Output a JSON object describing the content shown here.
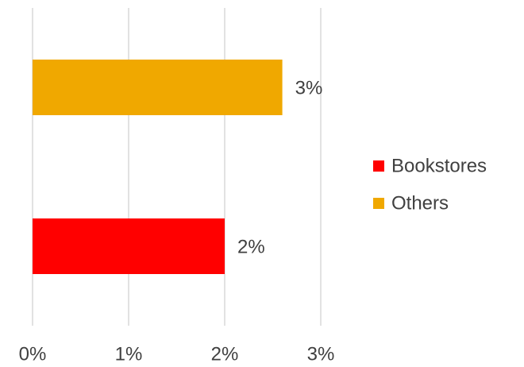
{
  "chart_data": {
    "type": "bar",
    "orientation": "horizontal",
    "categories": [
      null
    ],
    "series": [
      {
        "name": "Bookstores",
        "color": "#ff0000",
        "values": [
          2
        ],
        "value_labels": [
          "2%"
        ]
      },
      {
        "name": "Others",
        "color": "#f0a800",
        "values": [
          2.6
        ],
        "value_labels": [
          "3%"
        ]
      }
    ],
    "xlim": [
      0,
      3
    ],
    "xticks": [
      {
        "value": 0,
        "label": "0%"
      },
      {
        "value": 1,
        "label": "1%"
      },
      {
        "value": 2,
        "label": "2%"
      },
      {
        "value": 3,
        "label": "3%"
      }
    ],
    "grid": true,
    "legend": "right"
  }
}
